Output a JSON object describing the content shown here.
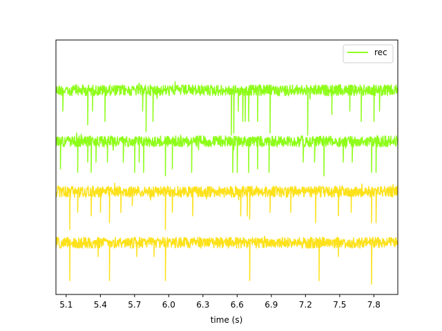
{
  "chart_data": {
    "type": "line",
    "title": "",
    "xlabel": "time (s)",
    "ylabel": "",
    "xlim": [
      5.01,
      8.01
    ],
    "xticks": [
      5.1,
      5.4,
      5.7,
      6.0,
      6.3,
      6.6,
      6.9,
      7.2,
      7.5,
      7.8
    ],
    "xtick_labels": [
      "5.1",
      "5.4",
      "5.7",
      "6.0",
      "6.3",
      "6.6",
      "6.9",
      "7.2",
      "7.5",
      "7.8"
    ],
    "yticks_visible": false,
    "legend": {
      "position": "upper-right",
      "entries": [
        {
          "label": "rec",
          "color": "#8efd1a"
        }
      ]
    },
    "grid": false,
    "channel_offsets": [
      0,
      1,
      2,
      3
    ],
    "baseline_noise_amplitude": 0.08,
    "series": [
      {
        "channel": 0,
        "color": "#8efd1a",
        "spikes": [
          [
            5.07,
            -0.3
          ],
          [
            5.29,
            -0.5
          ],
          [
            5.33,
            -0.3
          ],
          [
            5.44,
            -0.45
          ],
          [
            5.77,
            -0.3
          ],
          [
            5.8,
            -0.6
          ],
          [
            5.86,
            -0.45
          ],
          [
            6.55,
            -0.65
          ],
          [
            6.57,
            -0.62
          ],
          [
            6.61,
            -0.3
          ],
          [
            6.65,
            -0.45
          ],
          [
            6.67,
            -0.45
          ],
          [
            6.7,
            -0.45
          ],
          [
            6.78,
            -0.45
          ],
          [
            6.89,
            -0.62
          ],
          [
            7.22,
            -0.65
          ],
          [
            7.43,
            -0.35
          ],
          [
            7.59,
            -0.3
          ],
          [
            7.69,
            -0.45
          ],
          [
            7.8,
            -0.45
          ],
          [
            7.85,
            -0.3
          ]
        ]
      },
      {
        "channel": 1,
        "color": "#8efd1a",
        "spikes": [
          [
            5.05,
            -0.4
          ],
          [
            5.2,
            -0.45
          ],
          [
            5.29,
            -0.3
          ],
          [
            5.32,
            -0.45
          ],
          [
            5.36,
            -0.3
          ],
          [
            5.46,
            -0.3
          ],
          [
            5.6,
            -0.3
          ],
          [
            5.7,
            -0.45
          ],
          [
            5.74,
            -0.3
          ],
          [
            5.78,
            -0.45
          ],
          [
            5.97,
            -0.5
          ],
          [
            6.03,
            -0.4
          ],
          [
            6.2,
            -0.45
          ],
          [
            6.56,
            -0.45
          ],
          [
            6.6,
            -0.45
          ],
          [
            6.7,
            -0.45
          ],
          [
            6.78,
            -0.4
          ],
          [
            6.88,
            -0.45
          ],
          [
            7.18,
            -0.3
          ],
          [
            7.28,
            -0.3
          ],
          [
            7.36,
            -0.5
          ],
          [
            7.53,
            -0.3
          ],
          [
            7.61,
            -0.3
          ],
          [
            7.78,
            -0.45
          ],
          [
            7.82,
            -0.45
          ]
        ]
      },
      {
        "channel": 2,
        "color": "#fde11a",
        "spikes": [
          [
            5.13,
            -0.55
          ],
          [
            5.2,
            -0.3
          ],
          [
            5.32,
            -0.35
          ],
          [
            5.4,
            -0.3
          ],
          [
            5.48,
            -0.45
          ],
          [
            5.58,
            -0.3
          ],
          [
            5.68,
            -0.2
          ],
          [
            5.97,
            -0.55
          ],
          [
            6.03,
            -0.3
          ],
          [
            6.21,
            -0.35
          ],
          [
            6.63,
            -0.35
          ],
          [
            6.69,
            -0.35
          ],
          [
            6.71,
            -0.4
          ],
          [
            6.89,
            -0.3
          ],
          [
            7.07,
            -0.3
          ],
          [
            7.29,
            -0.45
          ],
          [
            7.49,
            -0.35
          ],
          [
            7.6,
            -0.3
          ],
          [
            7.78,
            -0.45
          ],
          [
            7.82,
            -0.45
          ]
        ]
      },
      {
        "channel": 3,
        "color": "#fde11a",
        "spikes": [
          [
            5.13,
            -0.55
          ],
          [
            5.38,
            -0.2
          ],
          [
            5.48,
            -0.55
          ],
          [
            5.72,
            -0.2
          ],
          [
            5.87,
            -0.2
          ],
          [
            5.97,
            -0.55
          ],
          [
            6.71,
            -0.55
          ],
          [
            7.32,
            -0.55
          ],
          [
            7.49,
            -0.2
          ],
          [
            7.78,
            -0.6
          ]
        ]
      }
    ]
  }
}
